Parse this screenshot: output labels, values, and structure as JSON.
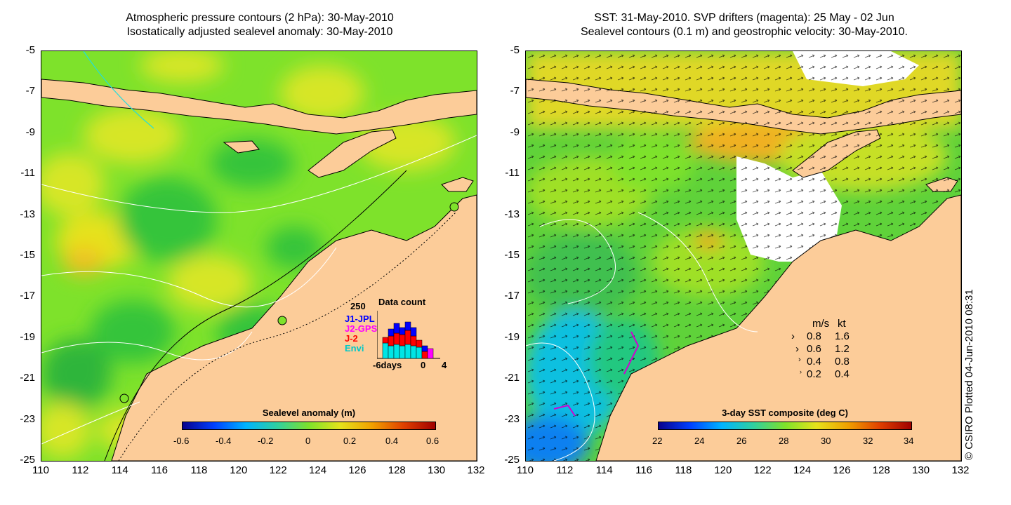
{
  "left_title": {
    "line1": "Atmospheric pressure contours (2 hPa): 30-May-2010",
    "line2": "Isostatically adjusted sealevel anomaly: 30-May-2010"
  },
  "right_title": {
    "line1": "SST: 31-May-2010. SVP drifters (magenta): 25 May - 02 Jun",
    "line2": "Sealevel contours (0.1 m) and geostrophic velocity: 30-May-2010."
  },
  "y_ticks": [
    "-5",
    "-7",
    "-9",
    "-11",
    "-13",
    "-15",
    "-17",
    "-19",
    "-21",
    "-23",
    "-25"
  ],
  "x_ticks": [
    "110",
    "112",
    "114",
    "116",
    "118",
    "120",
    "122",
    "124",
    "126",
    "128",
    "130",
    "132"
  ],
  "left_colorbar": {
    "title": "Sealevel anomaly (m)",
    "ticks": [
      "-0.6",
      "-0.4",
      "-0.2",
      "0",
      "0.2",
      "0.4",
      "0.6"
    ]
  },
  "right_colorbar": {
    "title": "3-day SST composite (deg C)",
    "ticks": [
      "22",
      "24",
      "26",
      "28",
      "30",
      "32",
      "34"
    ]
  },
  "data_count": {
    "title": "Data count",
    "ymax": "250",
    "x_labels": [
      "-6days",
      "0",
      "4"
    ],
    "legend": [
      {
        "label": "J1-JPL",
        "color": "#0000ff"
      },
      {
        "label": "J2-GPS",
        "color": "#ff00ff"
      },
      {
        "label": "J-2",
        "color": "#ff0000"
      },
      {
        "label": "Envi",
        "color": "#00e5e5"
      }
    ]
  },
  "velocity_key": {
    "header": [
      "m/s",
      "kt"
    ],
    "rows": [
      [
        "0.8",
        "1.6"
      ],
      [
        "0.6",
        "1.2"
      ],
      [
        "0.4",
        "0.8"
      ],
      [
        "0.2",
        "0.4"
      ]
    ]
  },
  "credit": "© CSIRO Plotted 04-Jun-2010 08:31",
  "colors": {
    "land": "#fccc99",
    "sea_mid": "#7ee22b",
    "sea_high": "#e6e21b"
  }
}
